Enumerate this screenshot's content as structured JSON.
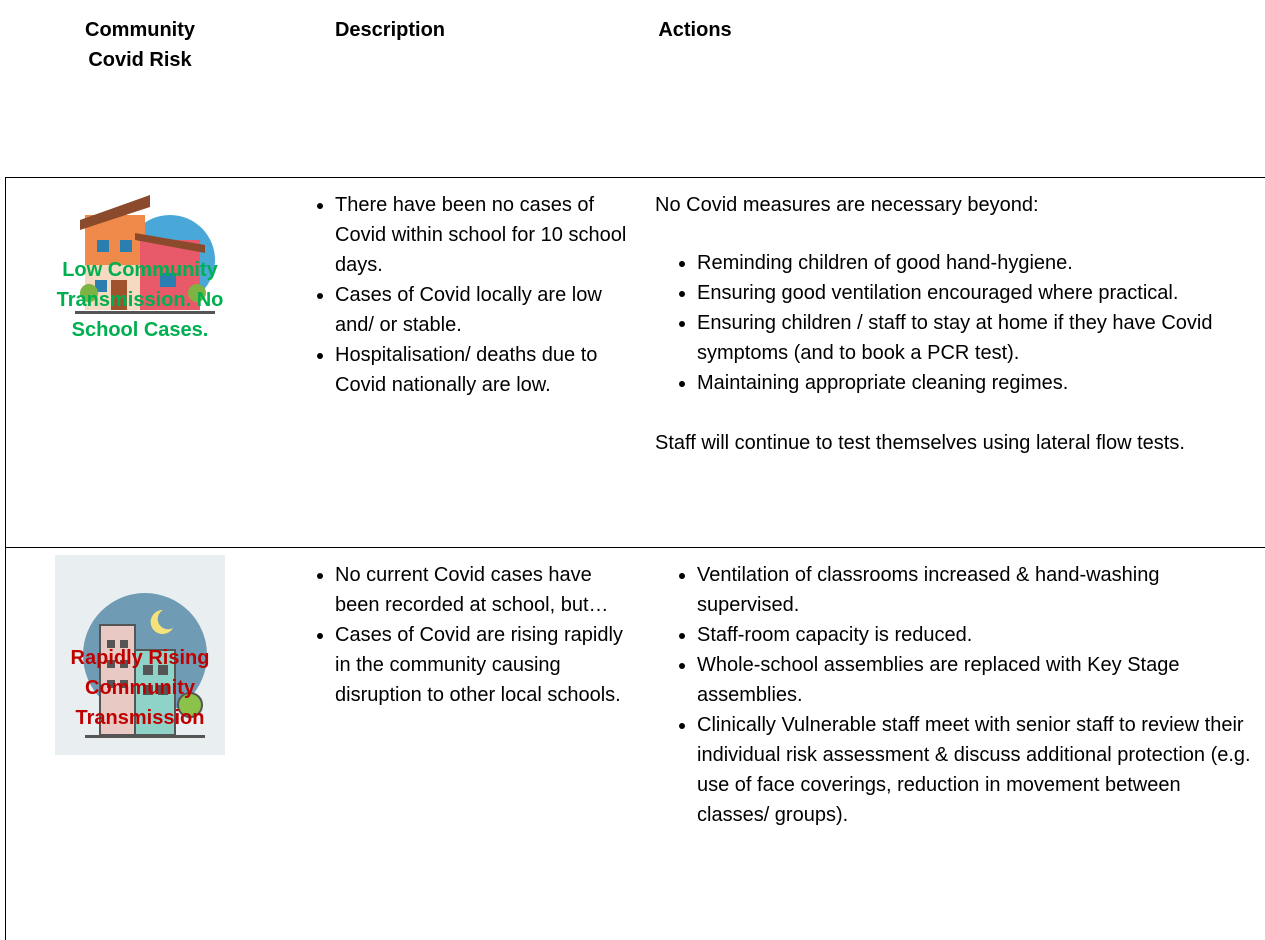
{
  "header": {
    "columns": [
      "Community Covid Risk",
      "Description",
      "Actions"
    ]
  },
  "rows": [
    {
      "risk": "Low Community Transmission. No School Cases.",
      "description": [
        "There have been no cases of Covid within school for 10 school days.",
        "Cases of Covid locally are low and/ or stable.",
        "Hospitalisation/ deaths due to Covid nationally are low."
      ],
      "actions": {
        "intro": "No Covid measures are necessary beyond:",
        "items": [
          "Reminding children of good hand-hygiene.",
          "Ensuring good ventilation encouraged where practical.",
          "Ensuring children / staff to stay at home if they have Covid symptoms (and to book a PCR test).",
          "Maintaining appropriate cleaning regimes."
        ],
        "outro": "Staff will continue to test themselves using lateral flow tests."
      }
    },
    {
      "risk": "Rapidly Rising Community Transmission",
      "description": [
        "No current Covid cases have been recorded at school, but…",
        "Cases of Covid are rising rapidly in the community causing disruption to other local schools."
      ],
      "actions": {
        "items": [
          "Ventilation of classrooms increased & hand-washing supervised.",
          "Staff-room capacity is reduced.",
          "Whole-school assemblies are replaced with Key Stage assemblies.",
          "Clinically Vulnerable staff meet with senior staff to review their individual risk assessment & discuss additional protection (e.g. use of face coverings, reduction in movement between classes/ groups)."
        ]
      }
    }
  ]
}
